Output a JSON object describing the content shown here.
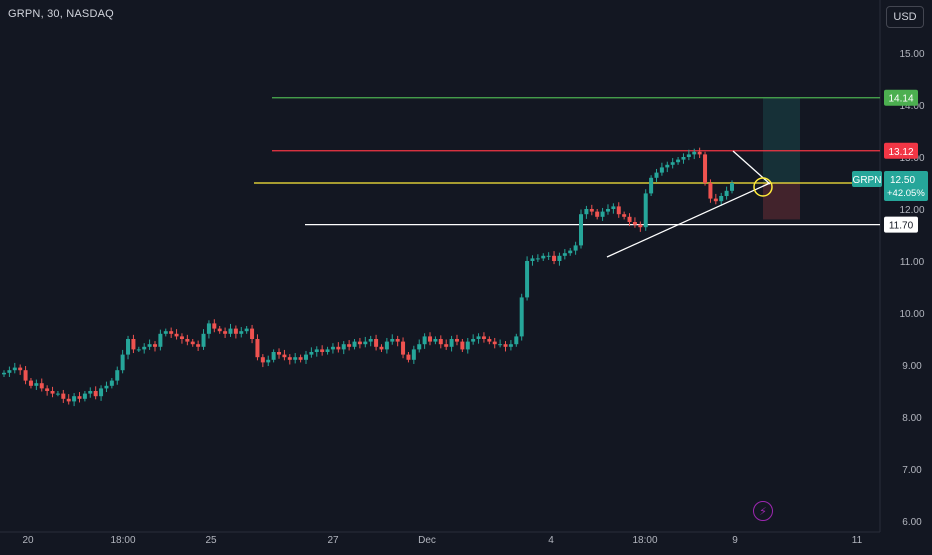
{
  "header": {
    "title": "GRPN, 30, NASDAQ",
    "currency_button": "USD"
  },
  "price_tag": {
    "symbol": "GRPN",
    "price": "12.50",
    "change": "+42.05%"
  },
  "icons": {
    "events_icon": "lightning-icon"
  },
  "colors": {
    "up": "#26a69a",
    "down": "#ef5350",
    "green_line": "#4caf50",
    "red_line": "#f23645",
    "yellow_line": "#ffeb3b",
    "white_line": "#ffffff",
    "background": "#131722"
  },
  "chart_data": {
    "type": "candlestick",
    "title": "",
    "xlabel": "",
    "ylabel": "",
    "ylim": [
      6.0,
      15.8
    ],
    "y_ticks": [
      "6.00",
      "7.00",
      "8.00",
      "9.00",
      "10.00",
      "11.00",
      "12.00",
      "13.00",
      "14.00",
      "15.00"
    ],
    "x_ticks": [
      "20",
      "18:00",
      "25",
      "27",
      "Dec",
      "4",
      "18:00",
      "9",
      "11"
    ],
    "grid": false,
    "close_series": [
      8.85,
      8.9,
      8.95,
      8.9,
      8.7,
      8.6,
      8.65,
      8.55,
      8.5,
      8.45,
      8.45,
      8.35,
      8.3,
      8.4,
      8.35,
      8.45,
      8.5,
      8.4,
      8.55,
      8.6,
      8.7,
      8.9,
      9.2,
      9.5,
      9.3,
      9.3,
      9.35,
      9.4,
      9.35,
      9.6,
      9.65,
      9.6,
      9.55,
      9.5,
      9.45,
      9.4,
      9.35,
      9.6,
      9.8,
      9.7,
      9.65,
      9.6,
      9.7,
      9.6,
      9.65,
      9.7,
      9.5,
      9.15,
      9.05,
      9.1,
      9.25,
      9.2,
      9.15,
      9.1,
      9.15,
      9.1,
      9.2,
      9.25,
      9.3,
      9.25,
      9.3,
      9.35,
      9.3,
      9.4,
      9.35,
      9.45,
      9.4,
      9.45,
      9.5,
      9.35,
      9.3,
      9.45,
      9.5,
      9.45,
      9.2,
      9.1,
      9.3,
      9.4,
      9.55,
      9.45,
      9.5,
      9.4,
      9.35,
      9.5,
      9.45,
      9.3,
      9.45,
      9.5,
      9.55,
      9.5,
      9.45,
      9.4,
      9.4,
      9.35,
      9.4,
      9.55,
      10.3,
      11.0,
      11.05,
      11.05,
      11.1,
      11.1,
      11.0,
      11.1,
      11.15,
      11.2,
      11.3,
      11.9,
      12.0,
      11.95,
      11.85,
      11.95,
      12.0,
      12.05,
      11.9,
      11.85,
      11.75,
      11.7,
      11.65,
      12.3,
      12.6,
      12.7,
      12.8,
      12.85,
      12.9,
      12.95,
      13.0,
      13.05,
      13.1,
      13.05,
      12.5,
      12.2,
      12.15,
      12.25,
      12.35,
      12.5
    ],
    "levels": [
      {
        "value": 14.14,
        "label": "14.14",
        "color": "#4caf50"
      },
      {
        "value": 13.12,
        "label": "13.12",
        "color": "#f23645"
      },
      {
        "value": 12.5,
        "label": "12.50",
        "color": "#ffeb3b"
      },
      {
        "value": 11.7,
        "label": "11.70",
        "color": "#ffffff"
      }
    ],
    "position": {
      "entry": 12.5,
      "target": 14.14,
      "stop": 11.8
    }
  }
}
